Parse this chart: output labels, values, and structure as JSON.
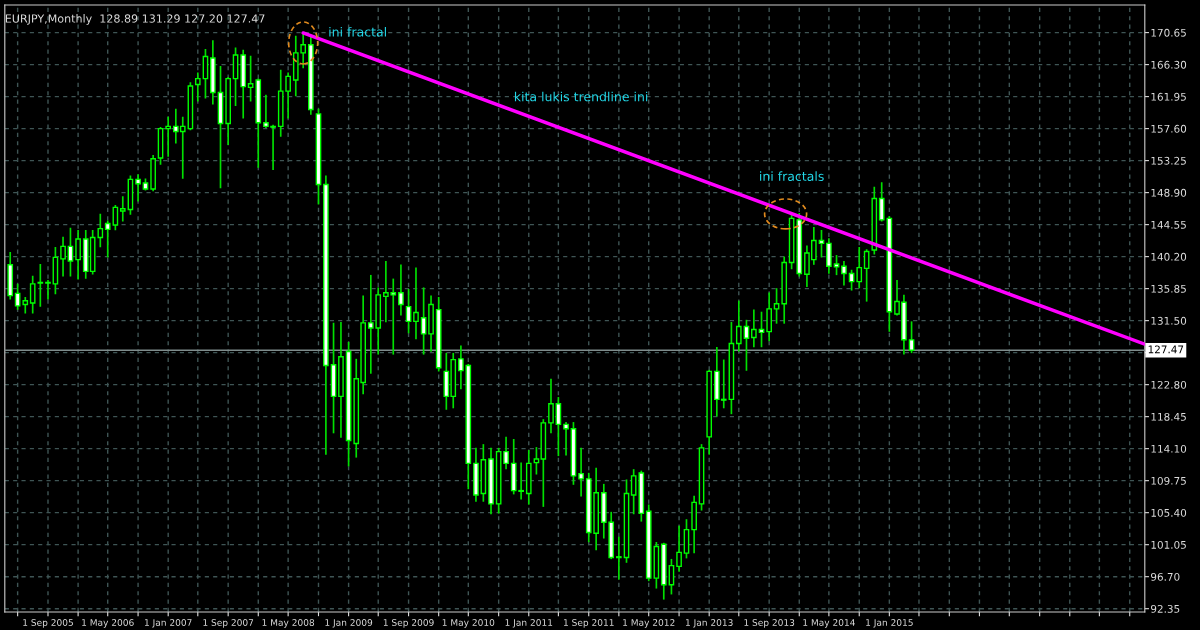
{
  "chart_data": {
    "type": "candlestick",
    "title": "EURJPY,Monthly  128.89 131.29 127.20 127.47",
    "x": [
      "2005-04",
      "2005-05",
      "2005-06",
      "2005-07",
      "2005-08",
      "2005-09",
      "2005-10",
      "2005-11",
      "2005-12",
      "2006-01",
      "2006-02",
      "2006-03",
      "2006-04",
      "2006-05",
      "2006-06",
      "2006-07",
      "2006-08",
      "2006-09",
      "2006-10",
      "2006-11",
      "2006-12",
      "2007-01",
      "2007-02",
      "2007-03",
      "2007-04",
      "2007-05",
      "2007-06",
      "2007-07",
      "2007-08",
      "2007-09",
      "2007-10",
      "2007-11",
      "2007-12",
      "2008-01",
      "2008-02",
      "2008-03",
      "2008-04",
      "2008-05",
      "2008-06",
      "2008-07",
      "2008-08",
      "2008-09",
      "2008-10",
      "2008-11",
      "2008-12",
      "2009-01",
      "2009-02",
      "2009-03",
      "2009-04",
      "2009-05",
      "2009-06",
      "2009-07",
      "2009-08",
      "2009-09",
      "2009-10",
      "2009-11",
      "2009-12",
      "2010-01",
      "2010-02",
      "2010-03",
      "2010-04",
      "2010-05",
      "2010-06",
      "2010-07",
      "2010-08",
      "2010-09",
      "2010-10",
      "2010-11",
      "2010-12",
      "2011-01",
      "2011-02",
      "2011-03",
      "2011-04",
      "2011-05",
      "2011-06",
      "2011-07",
      "2011-08",
      "2011-09",
      "2011-10",
      "2011-11",
      "2011-12",
      "2012-01",
      "2012-02",
      "2012-03",
      "2012-04",
      "2012-05",
      "2012-06",
      "2012-07",
      "2012-08",
      "2012-09",
      "2012-10",
      "2012-11",
      "2012-12",
      "2013-01",
      "2013-02",
      "2013-03",
      "2013-04",
      "2013-05",
      "2013-06",
      "2013-07",
      "2013-08",
      "2013-09",
      "2013-10",
      "2013-11",
      "2013-12",
      "2014-01",
      "2014-02",
      "2014-03",
      "2014-04",
      "2014-05",
      "2014-06",
      "2014-07",
      "2014-08",
      "2014-09",
      "2014-10",
      "2014-11",
      "2014-12",
      "2015-01",
      "2015-02",
      "2015-03",
      "2015-04"
    ],
    "ohlc": [
      [
        139.1,
        140.7,
        134.5,
        134.9
      ],
      [
        135.2,
        136.4,
        133.1,
        133.5
      ],
      [
        133.7,
        134.6,
        132.6,
        134.2
      ],
      [
        133.9,
        137.5,
        132.6,
        136.5
      ],
      [
        136.7,
        139.1,
        133.5,
        136.6
      ],
      [
        136.6,
        136.9,
        134.5,
        136.7
      ],
      [
        136.5,
        141.4,
        135.2,
        140.1
      ],
      [
        139.9,
        142.8,
        137.6,
        141.6
      ],
      [
        141.6,
        144.0,
        137.6,
        139.6
      ],
      [
        139.8,
        143.7,
        137.2,
        142.6
      ],
      [
        142.6,
        143.7,
        137.3,
        138.2
      ],
      [
        138.2,
        143.7,
        137.9,
        142.8
      ],
      [
        142.8,
        145.9,
        141.6,
        144.0
      ],
      [
        144.7,
        145.0,
        140.2,
        143.9
      ],
      [
        144.5,
        147.1,
        143.9,
        146.9
      ],
      [
        146.4,
        148.3,
        145.1,
        146.7
      ],
      [
        146.6,
        151.1,
        146.0,
        150.7
      ],
      [
        150.7,
        151.3,
        147.8,
        150.1
      ],
      [
        150.2,
        150.7,
        149.3,
        149.4
      ],
      [
        149.4,
        153.9,
        149.2,
        153.5
      ],
      [
        153.6,
        157.7,
        152.8,
        157.6
      ],
      [
        157.6,
        159.1,
        153.9,
        157.9
      ],
      [
        157.9,
        160.2,
        155.7,
        157.2
      ],
      [
        157.2,
        159.1,
        150.9,
        157.9
      ],
      [
        157.6,
        163.8,
        157.5,
        163.4
      ],
      [
        163.6,
        165.1,
        161.4,
        164.4
      ],
      [
        164.4,
        168.3,
        161.8,
        167.4
      ],
      [
        167.2,
        169.5,
        161.0,
        162.5
      ],
      [
        162.5,
        166.0,
        149.6,
        158.3
      ],
      [
        158.3,
        164.5,
        155.5,
        164.4
      ],
      [
        164.4,
        168.5,
        160.8,
        167.6
      ],
      [
        167.6,
        168.2,
        159.1,
        163.3
      ],
      [
        163.2,
        167.4,
        161.4,
        163.7
      ],
      [
        164.2,
        164.3,
        152.4,
        158.4
      ],
      [
        158.4,
        162.1,
        157.8,
        157.9
      ],
      [
        157.9,
        158.0,
        152.1,
        157.8
      ],
      [
        157.9,
        165.5,
        156.6,
        162.7
      ],
      [
        162.7,
        165.1,
        159.1,
        164.7
      ],
      [
        164.2,
        170.1,
        162.1,
        167.9
      ],
      [
        167.9,
        170.6,
        165.9,
        169.0
      ],
      [
        169.0,
        170.0,
        159.6,
        160.2
      ],
      [
        159.6,
        160.2,
        147.4,
        150.0
      ],
      [
        150.0,
        151.1,
        113.4,
        125.4
      ],
      [
        125.5,
        131.1,
        116.3,
        121.2
      ],
      [
        121.2,
        131.2,
        115.7,
        126.6
      ],
      [
        127.3,
        128.5,
        111.8,
        115.2
      ],
      [
        114.8,
        126.2,
        113.0,
        123.6
      ],
      [
        123.1,
        134.8,
        121.6,
        131.2
      ],
      [
        131.2,
        137.6,
        124.4,
        130.5
      ],
      [
        130.5,
        135.9,
        127.0,
        135.0
      ],
      [
        134.8,
        139.5,
        131.4,
        135.3
      ],
      [
        135.3,
        137.1,
        127.0,
        135.0
      ],
      [
        135.3,
        139.0,
        132.3,
        133.7
      ],
      [
        133.4,
        135.7,
        129.9,
        131.4
      ],
      [
        131.4,
        138.6,
        129.1,
        132.6
      ],
      [
        131.9,
        135.9,
        127.0,
        129.7
      ],
      [
        129.7,
        134.8,
        127.4,
        133.7
      ],
      [
        133.0,
        134.6,
        124.7,
        125.1
      ],
      [
        124.6,
        127.0,
        119.5,
        121.2
      ],
      [
        121.2,
        127.0,
        119.7,
        126.2
      ],
      [
        126.3,
        128.0,
        122.3,
        124.7
      ],
      [
        125.4,
        125.5,
        108.7,
        112.1
      ],
      [
        112.1,
        114.1,
        107.0,
        107.8
      ],
      [
        108.0,
        114.6,
        107.0,
        112.6
      ],
      [
        112.7,
        114.1,
        105.3,
        106.6
      ],
      [
        106.6,
        114.1,
        105.4,
        113.7
      ],
      [
        113.7,
        115.6,
        111.4,
        112.1
      ],
      [
        112.1,
        115.3,
        108.0,
        108.4
      ],
      [
        108.4,
        112.1,
        107.3,
        108.3
      ],
      [
        108.0,
        113.8,
        106.6,
        112.1
      ],
      [
        112.2,
        114.2,
        110.7,
        112.7
      ],
      [
        112.7,
        118.0,
        106.3,
        117.6
      ],
      [
        117.6,
        123.5,
        116.3,
        120.2
      ],
      [
        120.2,
        121.0,
        113.2,
        117.4
      ],
      [
        117.4,
        117.6,
        113.3,
        116.8
      ],
      [
        116.8,
        117.6,
        109.3,
        110.4
      ],
      [
        110.7,
        114.1,
        107.7,
        110.0
      ],
      [
        110.0,
        110.7,
        101.5,
        102.7
      ],
      [
        102.6,
        111.4,
        100.4,
        108.1
      ],
      [
        108.1,
        109.2,
        102.0,
        104.1
      ],
      [
        104.1,
        105.4,
        99.2,
        99.3
      ],
      [
        99.4,
        102.0,
        96.4,
        99.3
      ],
      [
        99.3,
        109.8,
        98.7,
        108.0
      ],
      [
        107.8,
        111.2,
        105.3,
        110.4
      ],
      [
        110.8,
        111.0,
        104.3,
        105.3
      ],
      [
        105.6,
        106.4,
        96.2,
        96.5
      ],
      [
        96.5,
        101.3,
        95.2,
        100.8
      ],
      [
        101.1,
        101.2,
        93.7,
        95.6
      ],
      [
        95.6,
        99.0,
        94.4,
        98.2
      ],
      [
        98.1,
        103.5,
        97.5,
        100.0
      ],
      [
        99.9,
        104.4,
        99.3,
        103.1
      ],
      [
        103.1,
        107.6,
        100.0,
        106.8
      ],
      [
        106.6,
        114.6,
        105.8,
        114.2
      ],
      [
        115.7,
        124.7,
        113.4,
        124.6
      ],
      [
        124.6,
        127.8,
        118.6,
        120.8
      ],
      [
        120.8,
        126.1,
        119.7,
        120.7
      ],
      [
        120.8,
        131.2,
        118.9,
        128.4
      ],
      [
        128.4,
        134.1,
        127.4,
        130.7
      ],
      [
        130.7,
        131.5,
        124.8,
        129.1
      ],
      [
        129.2,
        132.9,
        128.0,
        130.3
      ],
      [
        130.3,
        132.6,
        128.0,
        129.9
      ],
      [
        130.0,
        135.2,
        128.8,
        133.1
      ],
      [
        133.1,
        135.8,
        131.2,
        133.8
      ],
      [
        133.8,
        140.1,
        131.2,
        139.4
      ],
      [
        139.4,
        146.0,
        138.6,
        145.4
      ],
      [
        145.2,
        146.0,
        137.6,
        137.9
      ],
      [
        137.8,
        141.6,
        136.2,
        140.7
      ],
      [
        139.8,
        144.1,
        139.2,
        142.4
      ],
      [
        142.4,
        143.7,
        140.2,
        142.0
      ],
      [
        142.0,
        142.6,
        138.0,
        138.9
      ],
      [
        139.2,
        140.3,
        137.8,
        138.8
      ],
      [
        138.9,
        139.5,
        136.4,
        137.9
      ],
      [
        137.9,
        138.3,
        135.7,
        136.8
      ],
      [
        136.8,
        141.4,
        136.0,
        138.7
      ],
      [
        138.6,
        141.1,
        134.2,
        140.9
      ],
      [
        141.1,
        149.6,
        140.6,
        148.1
      ],
      [
        148.1,
        150.2,
        145.1,
        145.2
      ],
      [
        145.4,
        145.6,
        130.1,
        132.7
      ],
      [
        132.4,
        136.9,
        132.3,
        134.1
      ],
      [
        134.0,
        134.9,
        127.0,
        128.9
      ],
      [
        128.89,
        131.29,
        127.2,
        127.47
      ]
    ],
    "series": [
      {
        "type": "line",
        "color": "#ff00ff",
        "x": [
          "2008-07",
          "2017-11"
        ],
        "values": [
          170.6,
          128.3
        ]
      }
    ],
    "xlim": [
      "2005-03-10",
      "2017-11-01"
    ],
    "xticks": [
      {
        "value": "2005-05",
        "label": null
      },
      {
        "value": "2005-09",
        "label": "1 Sep 2005"
      },
      {
        "value": "2006-01",
        "label": null
      },
      {
        "value": "2006-05",
        "label": "1 May 2006"
      },
      {
        "value": "2006-09",
        "label": null
      },
      {
        "value": "2007-01",
        "label": "1 Jan 2007"
      },
      {
        "value": "2007-05",
        "label": null
      },
      {
        "value": "2007-09",
        "label": "1 Sep 2007"
      },
      {
        "value": "2008-01",
        "label": null
      },
      {
        "value": "2008-05",
        "label": "1 May 2008"
      },
      {
        "value": "2008-09",
        "label": null
      },
      {
        "value": "2009-01",
        "label": "1 Jan 2009"
      },
      {
        "value": "2009-05",
        "label": null
      },
      {
        "value": "2009-09",
        "label": "1 Sep 2009"
      },
      {
        "value": "2010-01",
        "label": null
      },
      {
        "value": "2010-05",
        "label": "1 May 2010"
      },
      {
        "value": "2010-09",
        "label": null
      },
      {
        "value": "2011-01",
        "label": "1 Jan 2011"
      },
      {
        "value": "2011-05",
        "label": null
      },
      {
        "value": "2011-09",
        "label": "1 Sep 2011"
      },
      {
        "value": "2012-01",
        "label": null
      },
      {
        "value": "2012-05",
        "label": "1 May 2012"
      },
      {
        "value": "2012-09",
        "label": null
      },
      {
        "value": "2013-01",
        "label": "1 Jan 2013"
      },
      {
        "value": "2013-05",
        "label": null
      },
      {
        "value": "2013-09",
        "label": "1 Sep 2013"
      },
      {
        "value": "2014-01",
        "label": null
      },
      {
        "value": "2014-05",
        "label": "1 May 2014"
      },
      {
        "value": "2014-09",
        "label": null
      },
      {
        "value": "2015-01",
        "label": "1 Jan 2015"
      },
      {
        "value": "2015-05",
        "label": null
      },
      {
        "value": "2015-09",
        "label": null
      },
      {
        "value": "2016-01",
        "label": null
      },
      {
        "value": "2016-05",
        "label": null
      },
      {
        "value": "2016-09",
        "label": null
      },
      {
        "value": "2017-01",
        "label": null
      },
      {
        "value": "2017-05",
        "label": null
      },
      {
        "value": "2017-09",
        "label": null
      }
    ],
    "ylim": [
      91.9,
      174.4
    ],
    "yticks": [
      {
        "value": 92.35,
        "label": "92.35"
      },
      {
        "value": 96.7,
        "label": "96.70"
      },
      {
        "value": 101.05,
        "label": "101.05"
      },
      {
        "value": 105.4,
        "label": "105.40"
      },
      {
        "value": 109.75,
        "label": "109.75"
      },
      {
        "value": 114.1,
        "label": "114.10"
      },
      {
        "value": 118.45,
        "label": "118.45"
      },
      {
        "value": 122.8,
        "label": "122.80"
      },
      {
        "value": 127.15,
        "label": null
      },
      {
        "value": 131.5,
        "label": "131.50"
      },
      {
        "value": 135.85,
        "label": "135.85"
      },
      {
        "value": 140.2,
        "label": "140.20"
      },
      {
        "value": 144.55,
        "label": "144.55"
      },
      {
        "value": 148.9,
        "label": "148.90"
      },
      {
        "value": 153.25,
        "label": "153.25"
      },
      {
        "value": 157.6,
        "label": "157.60"
      },
      {
        "value": 161.95,
        "label": "161.95"
      },
      {
        "value": 166.3,
        "label": "166.30"
      },
      {
        "value": 170.65,
        "label": "170.65"
      }
    ],
    "ref_lines": [
      {
        "axis": "y",
        "value": 127.47,
        "label": "127.47",
        "color": "#7f8c8c"
      }
    ],
    "annotations": [
      {
        "text": "ini fractal",
        "x": "2008-07",
        "y": 170.6
      },
      {
        "text": "kita lukis trendline ini",
        "x": "2011-08",
        "y": 157.2
      },
      {
        "text": "ini fractals",
        "x": "2013-12",
        "y": 146.0
      }
    ],
    "grid": true
  }
}
